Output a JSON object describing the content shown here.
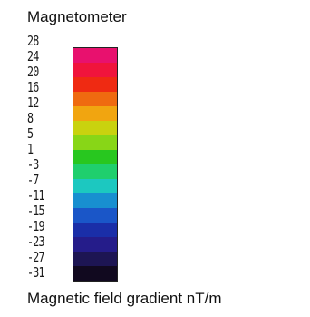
{
  "legend": {
    "title": "Magnetometer",
    "caption": "Magnetic field gradient nT/m",
    "tick_labels": [
      "28",
      "24",
      "20",
      "16",
      "12",
      "8",
      "5",
      "1",
      "-3",
      "-7",
      "-11",
      "-15",
      "-19",
      "-23",
      "-27",
      "-31"
    ],
    "color_stops": [
      "#e8116e",
      "#f0143c",
      "#ef2a12",
      "#ef6a10",
      "#f1a510",
      "#c9d20f",
      "#88d617",
      "#28c71f",
      "#1fcf6d",
      "#1cc8c0",
      "#188fd0",
      "#1a56c8",
      "#1a2ea8",
      "#251c8a",
      "#1d1553",
      "#11091f"
    ]
  }
}
